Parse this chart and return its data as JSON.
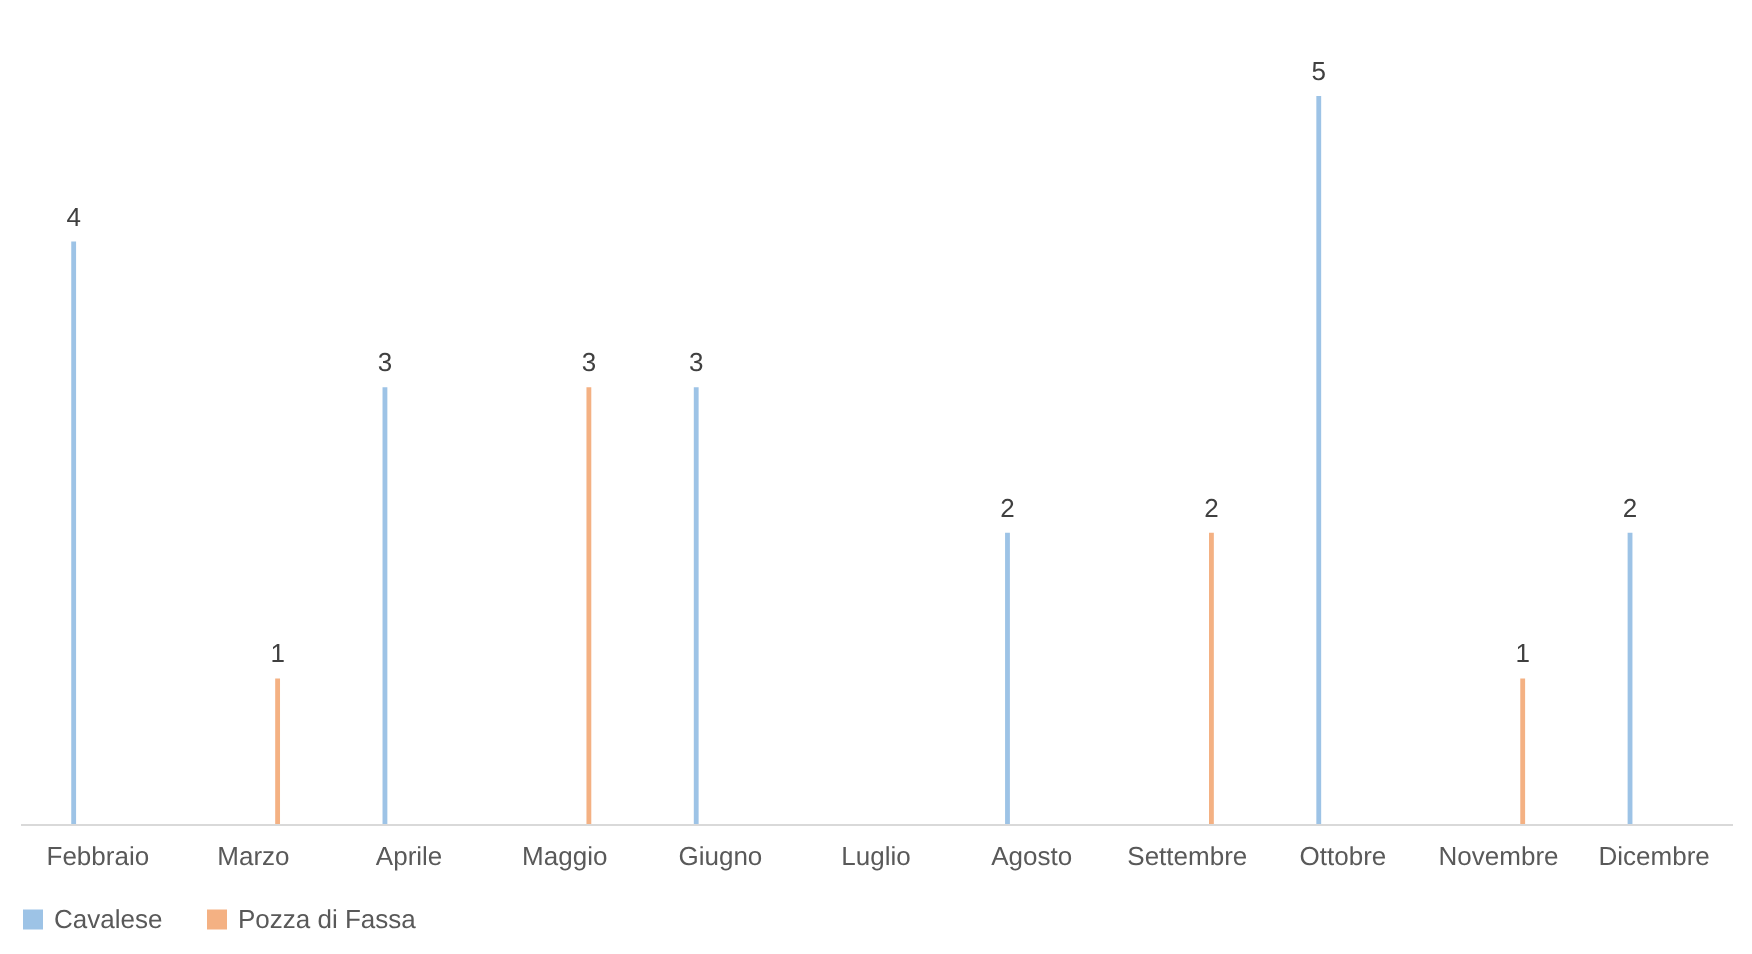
{
  "chart_data": {
    "type": "bar",
    "categories": [
      "Febbraio",
      "Marzo",
      "Aprile",
      "Maggio",
      "Giugno",
      "Luglio",
      "Agosto",
      "Settembre",
      "Ottobre",
      "Novembre",
      "Dicembre"
    ],
    "series": [
      {
        "name": "Cavalese",
        "color": "#9dc3e6",
        "values": [
          4,
          null,
          3,
          null,
          3,
          null,
          2,
          null,
          5,
          null,
          2
        ]
      },
      {
        "name": "Pozza di Fassa",
        "color": "#f4b183",
        "values": [
          null,
          1,
          null,
          3,
          null,
          null,
          null,
          2,
          null,
          1,
          null
        ]
      }
    ],
    "data_labels": true,
    "legend": "bottom"
  }
}
